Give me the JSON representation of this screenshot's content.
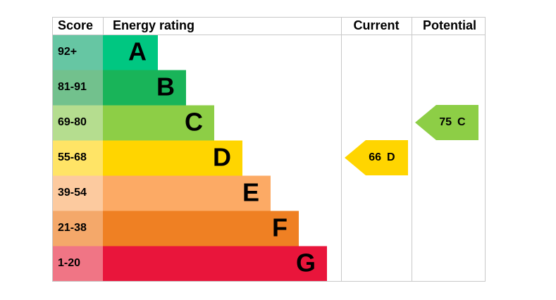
{
  "header": {
    "score": "Score",
    "energy_rating": "Energy rating",
    "current": "Current",
    "potential": "Potential"
  },
  "bands": [
    {
      "score": "92+",
      "letter": "A",
      "color": "#00c781",
      "score_color": "#66c6a3"
    },
    {
      "score": "81-91",
      "letter": "B",
      "color": "#19b459",
      "score_color": "#72c18d"
    },
    {
      "score": "69-80",
      "letter": "C",
      "color": "#8dce46",
      "score_color": "#b5dd8f"
    },
    {
      "score": "55-68",
      "letter": "D",
      "color": "#ffd500",
      "score_color": "#ffe466"
    },
    {
      "score": "39-54",
      "letter": "E",
      "color": "#fcaa65",
      "score_color": "#fcca9f"
    },
    {
      "score": "21-38",
      "letter": "F",
      "color": "#ef8023",
      "score_color": "#f4a86a"
    },
    {
      "score": "1-20",
      "letter": "G",
      "color": "#e9153b",
      "score_color": "#f07585"
    }
  ],
  "current": {
    "value": 66,
    "letter": "D"
  },
  "potential": {
    "value": 75,
    "letter": "C"
  }
}
